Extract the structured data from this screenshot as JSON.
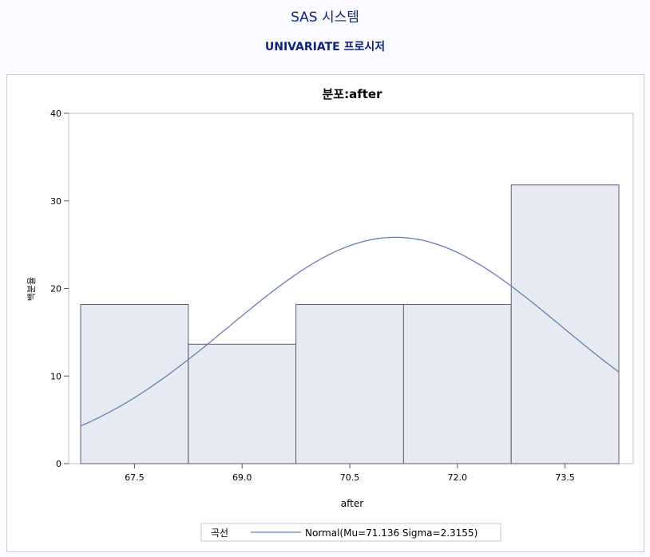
{
  "page": {
    "title": "SAS 시스템",
    "subtitle": "UNIVARIATE 프로시저"
  },
  "chart_data": {
    "type": "bar",
    "title": "분포:after",
    "xlabel": "after",
    "ylabel": "백분율",
    "x_ticks": [
      "67.5",
      "69.0",
      "70.5",
      "72.0",
      "73.5"
    ],
    "y_ticks": [
      0,
      10,
      20,
      30,
      40
    ],
    "ylim": [
      0,
      40
    ],
    "xlim": [
      66.75,
      74.25
    ],
    "bin_width": 1.5,
    "categories": [
      "67.5",
      "69.0",
      "70.5",
      "72.0",
      "73.5"
    ],
    "values": [
      18.18,
      13.64,
      18.18,
      18.18,
      31.82
    ],
    "curve": {
      "name": "Normal(Mu=71.136 Sigma=2.3155)",
      "distribution": "normal",
      "mu": 71.136,
      "sigma": 2.3155
    },
    "legend": {
      "title": "곡선",
      "label": "Normal(Mu=71.136 Sigma=2.3155)",
      "position": "bottom"
    },
    "colors": {
      "bar_fill": "#e6eaf3",
      "bar_stroke": "#5a5e6c",
      "curve": "#6b7bb0",
      "title": "#112277"
    }
  }
}
